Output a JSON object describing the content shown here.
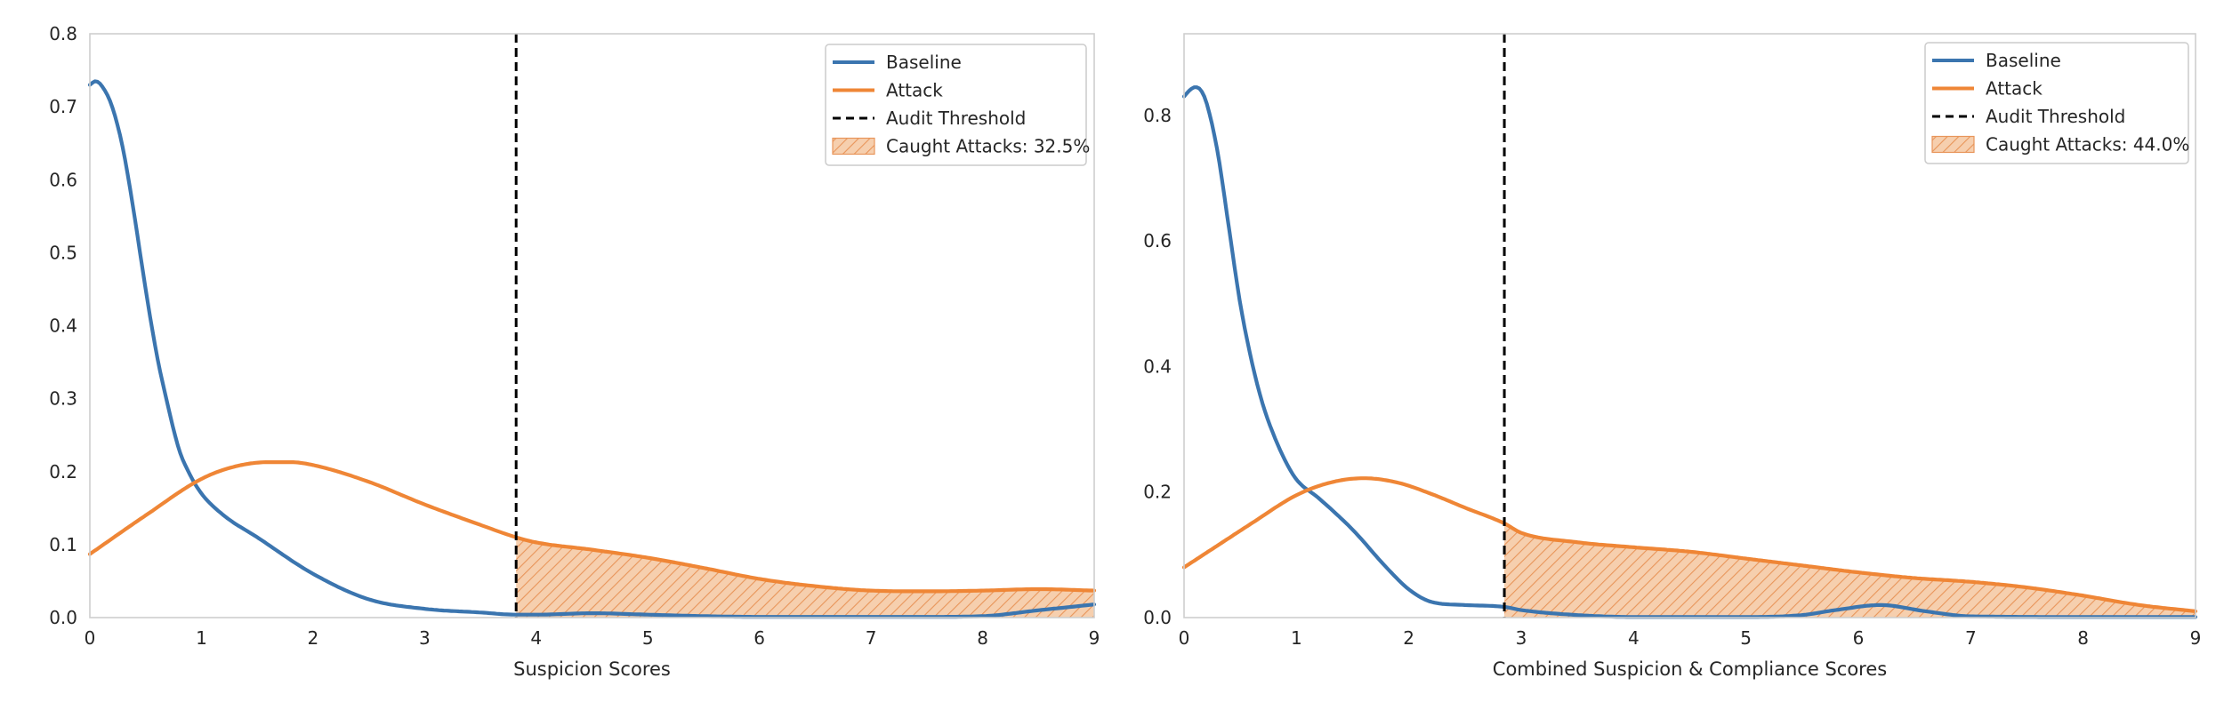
{
  "colors": {
    "baseline": "#3b75af",
    "attack": "#ef8636",
    "threshold": "#000000",
    "hatch_fill": "#f6cfae",
    "hatch_line": "#e8955a",
    "axes_edge": "#cfcfcf"
  },
  "chart_data": [
    {
      "type": "line",
      "title": "",
      "xlabel": "Suspicion Scores",
      "ylabel": "",
      "xlim": [
        0,
        9
      ],
      "ylim": [
        0,
        0.8
      ],
      "grid": false,
      "legend_position": "top-right",
      "x_ticks": [
        0,
        1,
        2,
        3,
        4,
        5,
        6,
        7,
        8,
        9
      ],
      "y_ticks": [
        0.0,
        0.1,
        0.2,
        0.3,
        0.4,
        0.5,
        0.6,
        0.7,
        0.8
      ],
      "y_tick_decimals": 1,
      "threshold": 3.82,
      "threshold_label": "Audit Threshold",
      "caught_label": "Caught Attacks: 32.5%",
      "series": [
        {
          "name": "Baseline",
          "color_key": "baseline",
          "x": [
            0,
            0.05,
            0.1,
            0.2,
            0.3,
            0.4,
            0.5,
            0.6,
            0.7,
            0.8,
            0.9,
            1.0,
            1.2,
            1.5,
            2.0,
            2.5,
            3.0,
            3.5,
            3.82,
            4.0,
            4.5,
            5.0,
            5.5,
            6.0,
            6.5,
            7.0,
            7.5,
            8.0,
            8.5,
            9.0
          ],
          "y": [
            0.73,
            0.735,
            0.73,
            0.7,
            0.64,
            0.55,
            0.45,
            0.36,
            0.29,
            0.23,
            0.195,
            0.17,
            0.14,
            0.11,
            0.06,
            0.025,
            0.012,
            0.007,
            0.004,
            0.004,
            0.006,
            0.004,
            0.002,
            0.001,
            0.001,
            0.001,
            0.001,
            0.002,
            0.01,
            0.018
          ]
        },
        {
          "name": "Attack",
          "color_key": "attack",
          "x": [
            0,
            0.5,
            1.0,
            1.3,
            1.6,
            1.8,
            2.0,
            2.5,
            3.0,
            3.5,
            3.82,
            4.0,
            4.5,
            5.0,
            5.5,
            6.0,
            6.5,
            7.0,
            7.5,
            8.0,
            8.5,
            9.0
          ],
          "y": [
            0.087,
            0.14,
            0.19,
            0.207,
            0.213,
            0.213,
            0.209,
            0.186,
            0.155,
            0.127,
            0.11,
            0.103,
            0.093,
            0.082,
            0.068,
            0.053,
            0.043,
            0.037,
            0.036,
            0.037,
            0.039,
            0.037
          ]
        }
      ]
    },
    {
      "type": "line",
      "title": "",
      "xlabel": "Combined Suspicion & Compliance Scores",
      "ylabel": "",
      "xlim": [
        0,
        9
      ],
      "ylim": [
        0,
        0.93
      ],
      "grid": false,
      "legend_position": "top-right",
      "x_ticks": [
        0,
        1,
        2,
        3,
        4,
        5,
        6,
        7,
        8,
        9
      ],
      "y_ticks": [
        0.0,
        0.2,
        0.4,
        0.6,
        0.8
      ],
      "y_tick_decimals": 1,
      "threshold": 2.85,
      "threshold_label": "Audit Threshold",
      "caught_label": "Caught Attacks: 44.0%",
      "series": [
        {
          "name": "Baseline",
          "color_key": "baseline",
          "x": [
            0,
            0.05,
            0.1,
            0.15,
            0.2,
            0.3,
            0.4,
            0.5,
            0.6,
            0.7,
            0.8,
            0.9,
            1.0,
            1.2,
            1.5,
            1.8,
            2.0,
            2.2,
            2.5,
            2.85,
            3.0,
            3.5,
            4.0,
            5.0,
            5.5,
            5.8,
            6.2,
            6.6,
            7.0,
            8.0,
            9.0
          ],
          "y": [
            0.83,
            0.84,
            0.845,
            0.84,
            0.82,
            0.74,
            0.62,
            0.5,
            0.41,
            0.34,
            0.29,
            0.25,
            0.22,
            0.19,
            0.14,
            0.08,
            0.045,
            0.025,
            0.02,
            0.017,
            0.012,
            0.004,
            0.001,
            0.001,
            0.004,
            0.012,
            0.02,
            0.01,
            0.002,
            0.001,
            0.001
          ]
        },
        {
          "name": "Attack",
          "color_key": "attack",
          "x": [
            0,
            0.3,
            0.6,
            1.0,
            1.3,
            1.6,
            1.9,
            2.2,
            2.5,
            2.85,
            3.0,
            3.5,
            4.0,
            4.5,
            5.0,
            5.5,
            6.0,
            6.5,
            7.0,
            7.5,
            8.0,
            8.5,
            9.0
          ],
          "y": [
            0.08,
            0.115,
            0.15,
            0.195,
            0.215,
            0.222,
            0.215,
            0.197,
            0.175,
            0.15,
            0.135,
            0.12,
            0.112,
            0.105,
            0.094,
            0.083,
            0.072,
            0.063,
            0.057,
            0.048,
            0.035,
            0.02,
            0.01
          ]
        }
      ]
    }
  ]
}
